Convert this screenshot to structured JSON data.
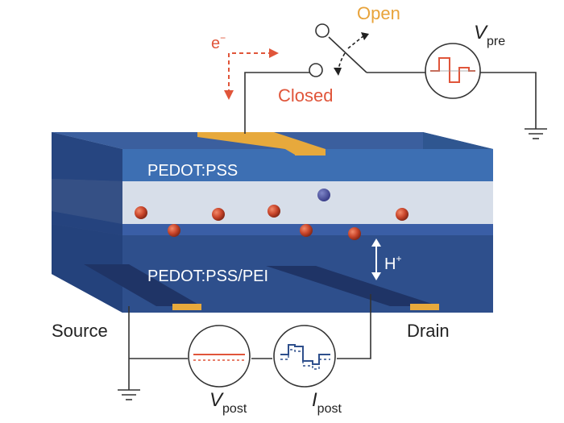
{
  "labels": {
    "top_layer": "PEDOT:PSS",
    "bottom_layer": "PEDOT:PSS/PEI",
    "source": "Source",
    "drain": "Drain",
    "open": "Open",
    "closed": "Closed",
    "electron_base": "e",
    "electron_sup": "−",
    "proton_base": "H",
    "proton_sup": "+",
    "v_pre_base": "V",
    "v_pre_sub": "pre",
    "v_post_base": "V",
    "v_post_sub": "post",
    "i_post_base": "I",
    "i_post_sub": "post"
  },
  "colors": {
    "accent_orange": "#e8a33a",
    "electron_red": "#e0553a",
    "top_layer": "#3d6fb3",
    "bottom_layer": "#2e4f8c",
    "electrolyte": "#d7dee9",
    "electrode_gold": "#e7a93c",
    "wire": "#333333"
  },
  "icons": [
    "switch",
    "voltage-source",
    "ground",
    "ammeter",
    "double-arrow"
  ]
}
